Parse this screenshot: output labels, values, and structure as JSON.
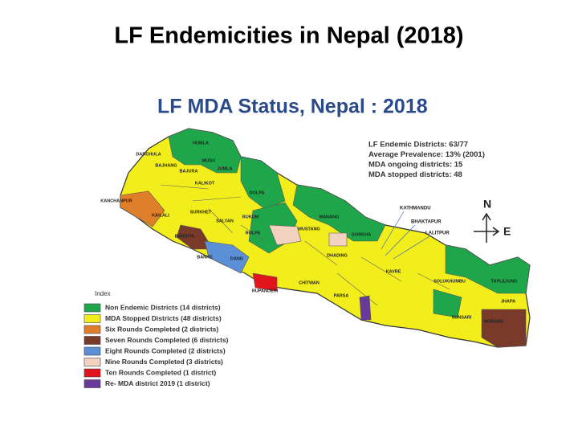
{
  "title": "LF Endemicities in Nepal (2018)",
  "map": {
    "title": "LF MDA Status, Nepal : 2018",
    "stats": [
      "LF Endemic Districts: 63/77",
      "Average Prevalence: 13% (2001)",
      "MDA ongoing districts: 15",
      "MDA stopped districts: 48"
    ],
    "compass": {
      "north": "N",
      "east": "E"
    },
    "places": [
      "KATHMANDU",
      "BHAKTAPUR",
      "LALITPUR"
    ],
    "districts": [
      "DARCHULA",
      "BAJHANG",
      "BAJURA",
      "HUMLA",
      "MUGU",
      "KALIKOT",
      "JUMLA",
      "DOLPA",
      "KANCHANPUR",
      "KAILALI",
      "BARDIYA",
      "BANKE",
      "DANG",
      "SURKHET",
      "SALYAN",
      "RUKUM",
      "ROLPA",
      "MUSTANG",
      "MANANG",
      "GORKHA",
      "DHADING",
      "CHITWAN",
      "RUPANDEHI",
      "PARSA",
      "KAVRE",
      "SOLUKHUMBU",
      "TAPLEJUNG",
      "SUNSARI",
      "MORANG",
      "JHAPA"
    ],
    "legend": {
      "title": "Index",
      "items": [
        {
          "label": "Non Endemic Districts (14 districts)",
          "color": "#1fa64a"
        },
        {
          "label": "MDA Stopped Districts (48 districts)",
          "color": "#f2ee1c"
        },
        {
          "label": "Six Rounds Completed (2 districts)",
          "color": "#e07f2a"
        },
        {
          "label": "Seven Rounds Completed (6 districts)",
          "color": "#7a3a2a"
        },
        {
          "label": "Eight Rounds Completed (2 districts)",
          "color": "#5b8fd6"
        },
        {
          "label": "Nine Rounds Completed (3 districts)",
          "color": "#f3d3c0"
        },
        {
          "label": "Ten Rounds Completed (1 district)",
          "color": "#e0161c"
        },
        {
          "label": "Re- MDA district 2019 (1 district)",
          "color": "#6a3a9a"
        }
      ]
    }
  }
}
